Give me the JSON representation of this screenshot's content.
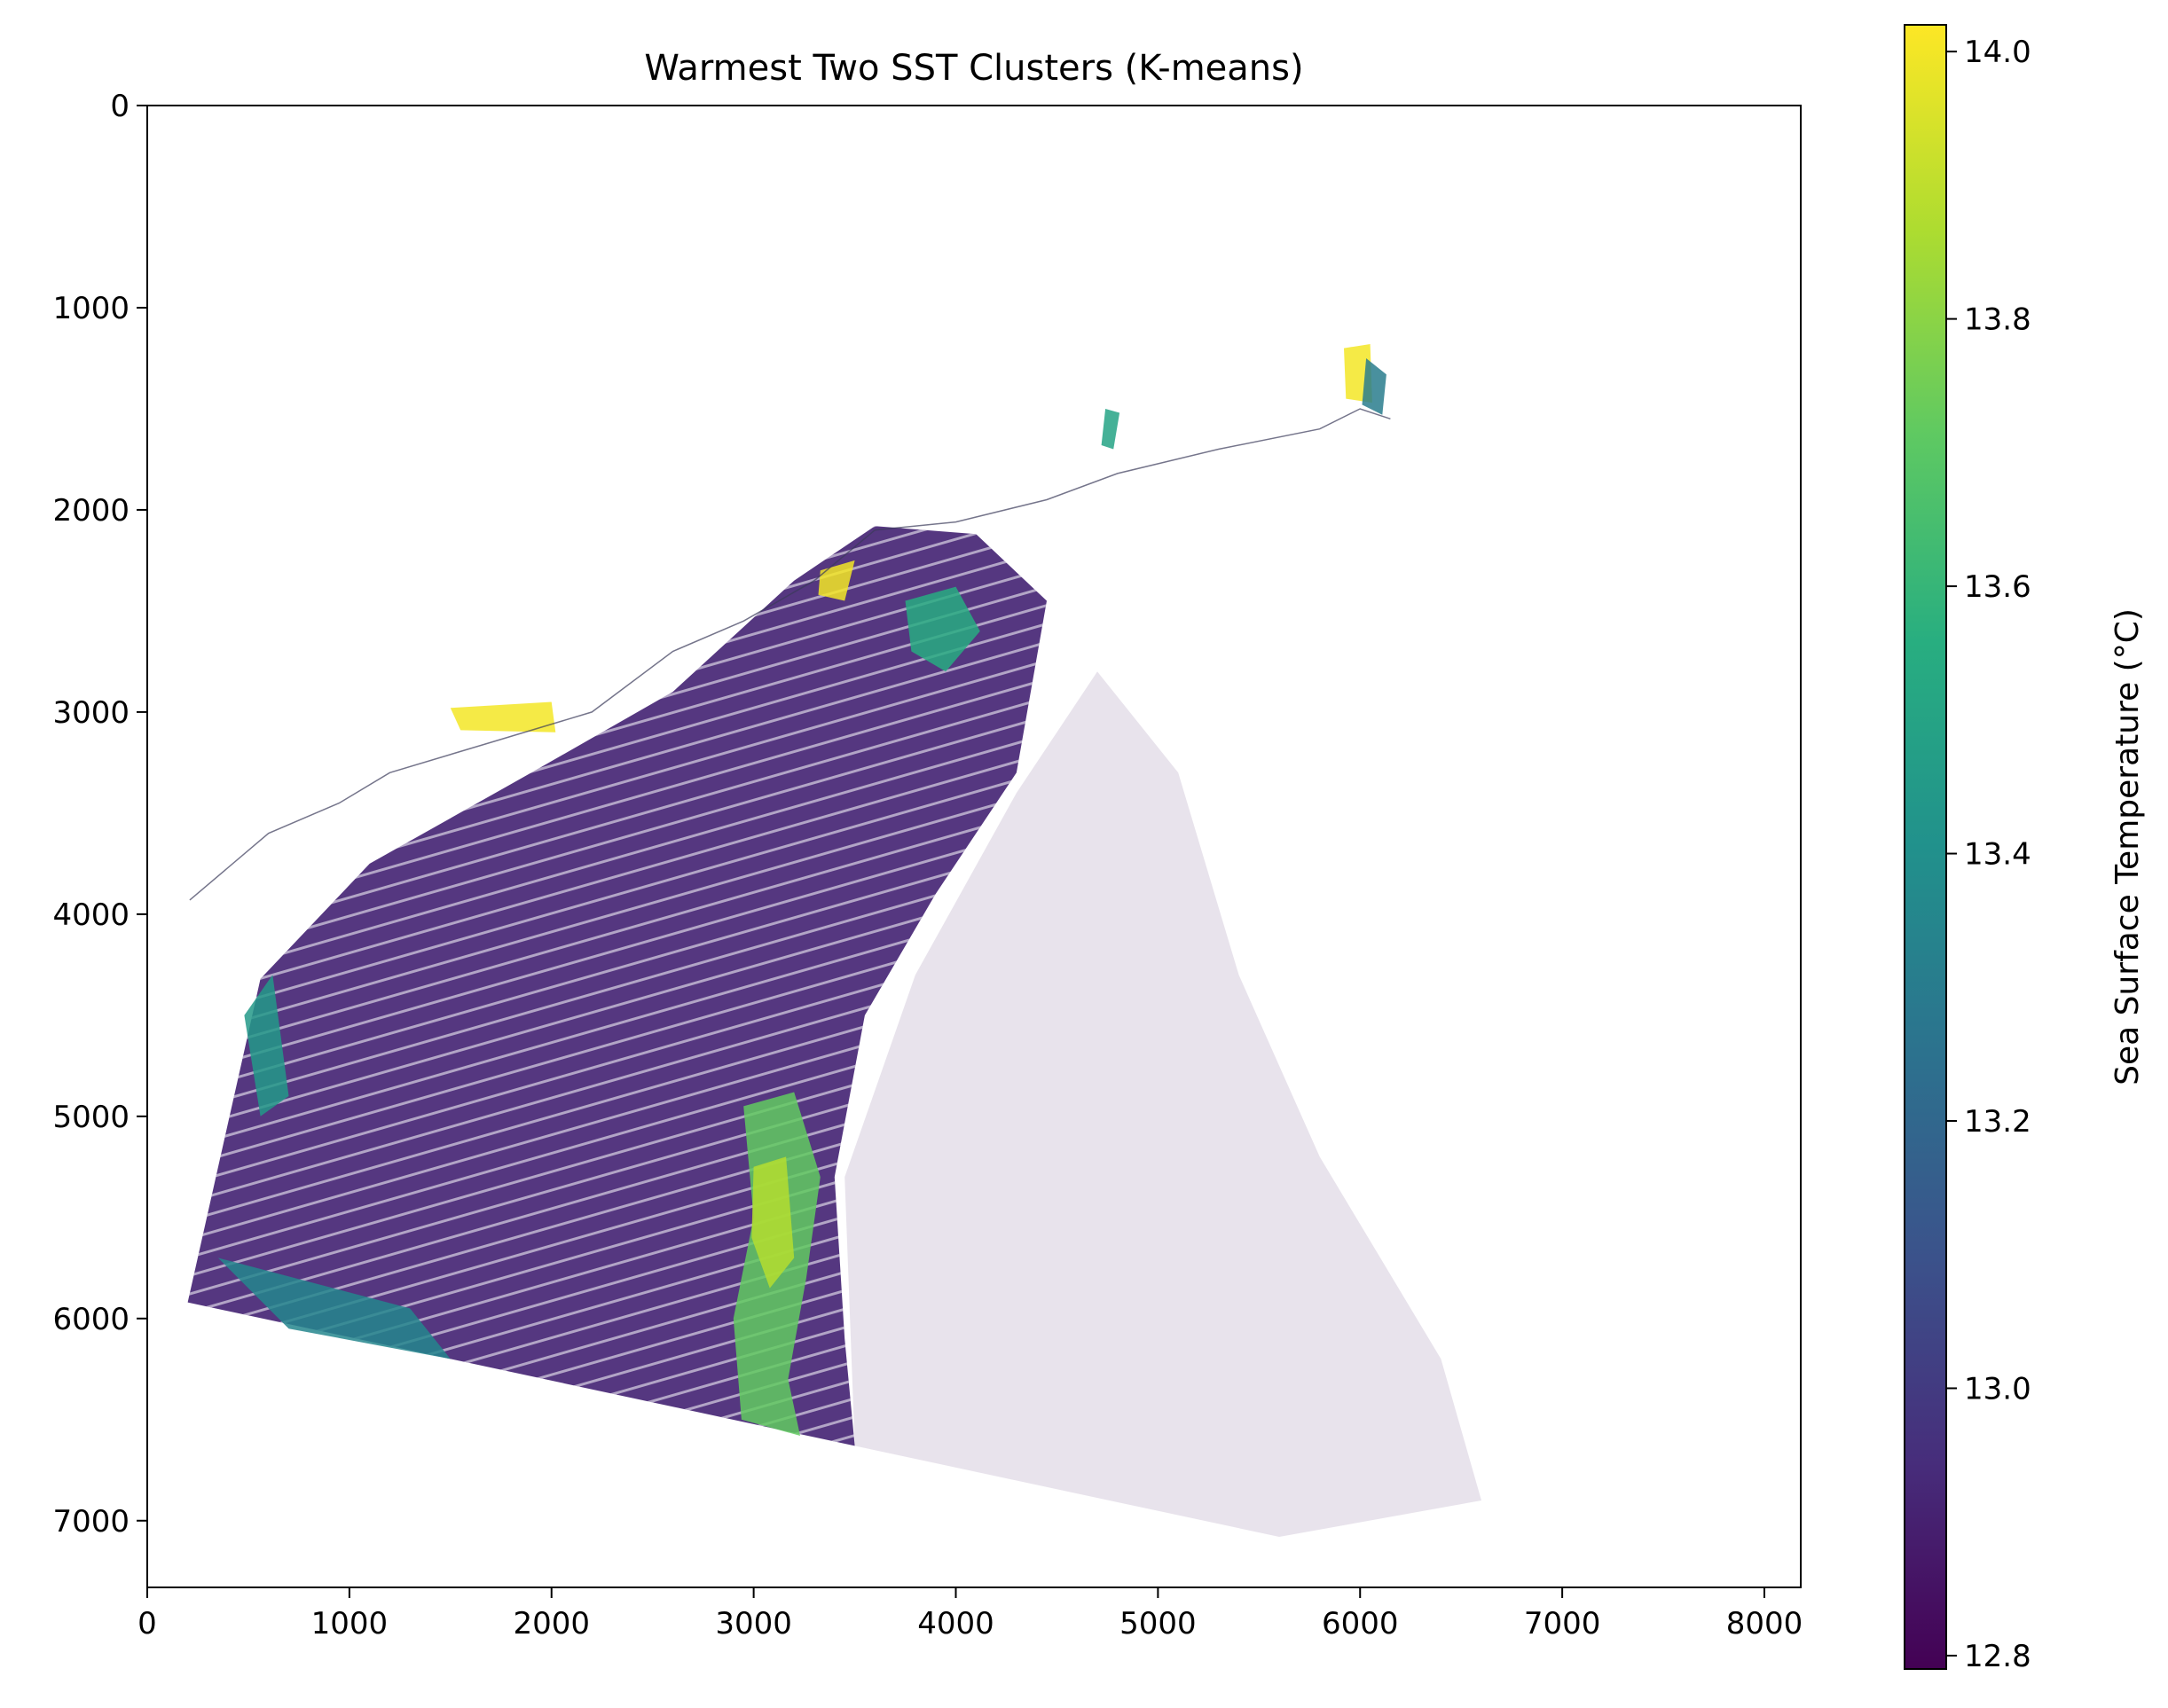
{
  "chart_data": {
    "type": "heatmap",
    "title": "Warmest Two SST Clusters (K-means)",
    "xlabel": "",
    "ylabel": "",
    "x_ticks": [
      0,
      1000,
      2000,
      3000,
      4000,
      5000,
      6000,
      7000,
      8000
    ],
    "y_ticks": [
      0,
      1000,
      2000,
      3000,
      4000,
      5000,
      6000,
      7000
    ],
    "xlim": [
      0,
      8180
    ],
    "ylim": [
      7330,
      0
    ],
    "y_inverted": true,
    "grid": false,
    "colormap": "viridis",
    "colorbar": {
      "label": "Sea Surface Temperature (°C)",
      "ticks": [
        "12.8",
        "13.0",
        "13.2",
        "13.4",
        "13.6",
        "13.8",
        "14.0"
      ],
      "range": [
        12.79,
        14.02
      ],
      "placement": "right"
    },
    "regions": [
      {
        "name": "swath",
        "value": 12.92,
        "polygon": [
          [
            200,
            5920
          ],
          [
            560,
            4320
          ],
          [
            1100,
            3750
          ],
          [
            1900,
            3300
          ],
          [
            2600,
            2900
          ],
          [
            3200,
            2350
          ],
          [
            3600,
            2080
          ],
          [
            4100,
            2120
          ],
          [
            4450,
            2450
          ],
          [
            4300,
            3300
          ],
          [
            3900,
            3900
          ],
          [
            3550,
            4500
          ],
          [
            3400,
            5300
          ],
          [
            3450,
            6100
          ],
          [
            3500,
            6630
          ]
        ]
      },
      {
        "name": "faint-offshore",
        "value": 12.86,
        "polygon": [
          [
            3500,
            6630
          ],
          [
            3450,
            5300
          ],
          [
            3800,
            4300
          ],
          [
            4300,
            3400
          ],
          [
            4700,
            2800
          ],
          [
            5100,
            3300
          ],
          [
            5400,
            4300
          ],
          [
            5800,
            5200
          ],
          [
            6400,
            6200
          ],
          [
            6600,
            6900
          ],
          [
            5600,
            7080
          ]
        ]
      },
      {
        "name": "warm-band-central",
        "value": 13.72,
        "polygon": [
          [
            2950,
            4950
          ],
          [
            3200,
            4880
          ],
          [
            3330,
            5300
          ],
          [
            3260,
            5800
          ],
          [
            3170,
            6300
          ],
          [
            3230,
            6580
          ],
          [
            2940,
            6500
          ],
          [
            2900,
            6000
          ],
          [
            3000,
            5500
          ]
        ]
      },
      {
        "name": "warm-core",
        "value": 13.88,
        "polygon": [
          [
            3000,
            5250
          ],
          [
            3160,
            5200
          ],
          [
            3200,
            5700
          ],
          [
            3080,
            5850
          ],
          [
            2990,
            5600
          ]
        ]
      },
      {
        "name": "warm-north-eddy",
        "value": 13.55,
        "polygon": [
          [
            3750,
            2450
          ],
          [
            4000,
            2380
          ],
          [
            4120,
            2600
          ],
          [
            3950,
            2800
          ],
          [
            3780,
            2700
          ]
        ]
      },
      {
        "name": "warm-west-edge",
        "value": 13.45,
        "polygon": [
          [
            480,
            4500
          ],
          [
            620,
            4300
          ],
          [
            700,
            4900
          ],
          [
            560,
            5000
          ]
        ]
      },
      {
        "name": "warm-south-west",
        "value": 13.35,
        "polygon": [
          [
            350,
            5700
          ],
          [
            1300,
            5950
          ],
          [
            1500,
            6200
          ],
          [
            700,
            6050
          ]
        ]
      },
      {
        "name": "coast-yellow-1",
        "value": 14.0,
        "polygon": [
          [
            5920,
            1200
          ],
          [
            6050,
            1180
          ],
          [
            6060,
            1470
          ],
          [
            5930,
            1450
          ]
        ]
      },
      {
        "name": "coast-yellow-2",
        "value": 14.0,
        "polygon": [
          [
            3330,
            2300
          ],
          [
            3500,
            2250
          ],
          [
            3450,
            2450
          ],
          [
            3320,
            2420
          ]
        ]
      },
      {
        "name": "coast-yellow-3",
        "value": 14.0,
        "polygon": [
          [
            1500,
            2980
          ],
          [
            2000,
            2950
          ],
          [
            2020,
            3100
          ],
          [
            1550,
            3090
          ]
        ]
      },
      {
        "name": "coast-teal-1",
        "value": 13.3,
        "polygon": [
          [
            6030,
            1250
          ],
          [
            6130,
            1330
          ],
          [
            6110,
            1530
          ],
          [
            6010,
            1480
          ]
        ]
      },
      {
        "name": "coast-teal-2",
        "value": 13.5,
        "polygon": [
          [
            4740,
            1500
          ],
          [
            4810,
            1520
          ],
          [
            4780,
            1700
          ],
          [
            4720,
            1680
          ]
        ]
      }
    ],
    "coastline": [
      [
        210,
        3930
      ],
      [
        600,
        3600
      ],
      [
        950,
        3450
      ],
      [
        1200,
        3300
      ],
      [
        1700,
        3150
      ],
      [
        2200,
        3000
      ],
      [
        2600,
        2700
      ],
      [
        2950,
        2550
      ],
      [
        3300,
        2350
      ],
      [
        3600,
        2100
      ],
      [
        4000,
        2060
      ],
      [
        4450,
        1950
      ],
      [
        4800,
        1820
      ],
      [
        5300,
        1700
      ],
      [
        5800,
        1600
      ],
      [
        6000,
        1500
      ],
      [
        6150,
        1550
      ]
    ]
  }
}
